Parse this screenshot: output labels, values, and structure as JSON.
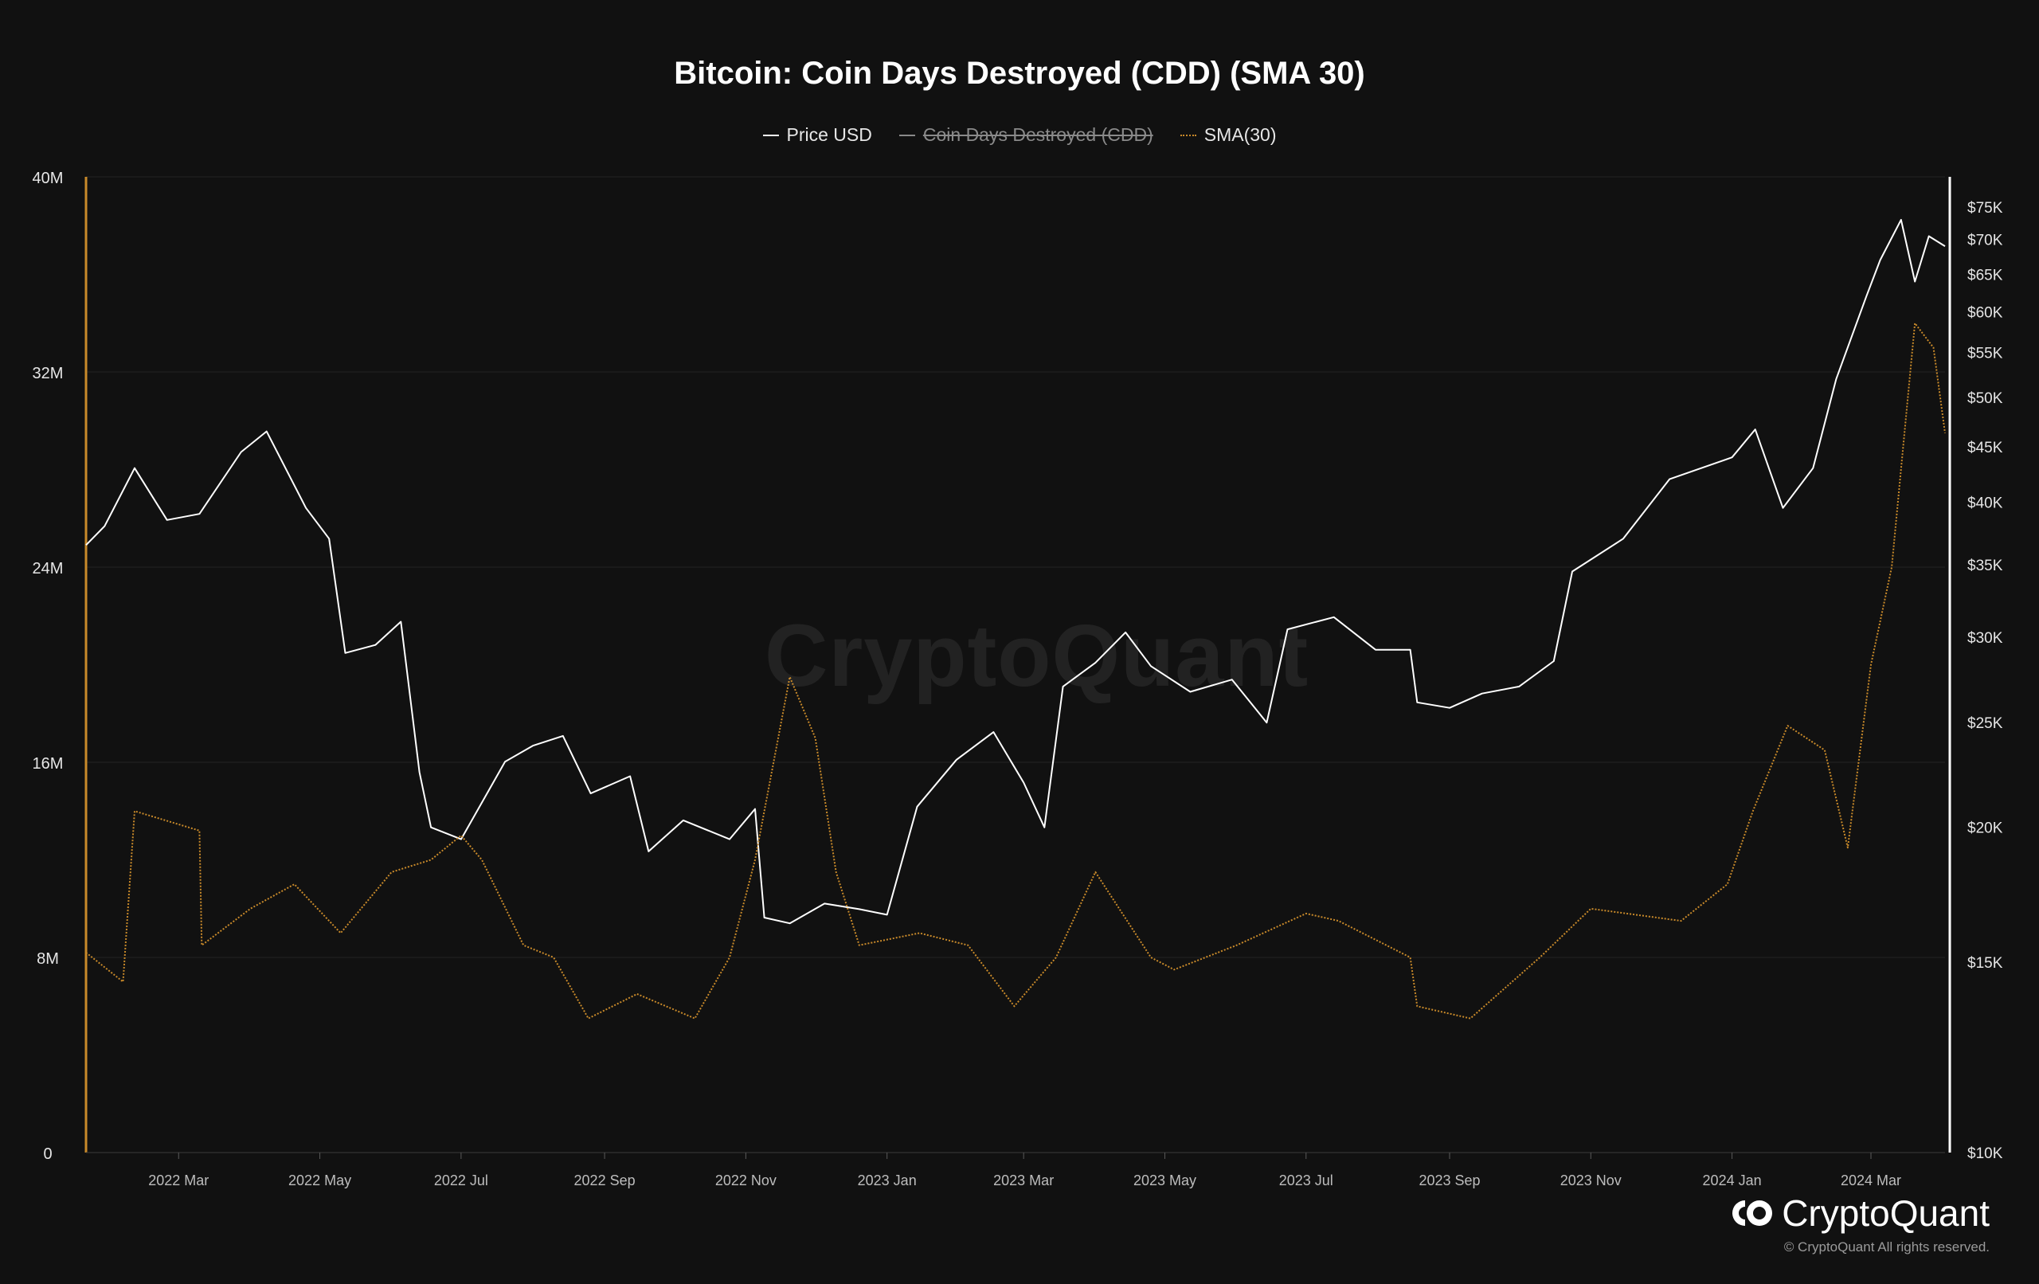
{
  "chart_data": {
    "type": "line",
    "title": "Bitcoin: Coin Days Destroyed (CDD) (SMA 30)",
    "legend": [
      {
        "label": "Price USD",
        "state": "visible"
      },
      {
        "label": "Coin Days Destroyed (CDD)",
        "state": "hidden"
      },
      {
        "label": "SMA(30)",
        "state": "visible"
      }
    ],
    "x_ticks": [
      "2022 Mar",
      "2022 May",
      "2022 Jul",
      "2022 Sep",
      "2022 Nov",
      "2023 Jan",
      "2023 Mar",
      "2023 May",
      "2023 Jul",
      "2023 Sep",
      "2023 Nov",
      "2024 Jan",
      "2024 Mar"
    ],
    "y_left": {
      "range": [
        0,
        40
      ],
      "ticks": [
        "0",
        "8M",
        "16M",
        "24M",
        "32M",
        "40M"
      ]
    },
    "y_right": {
      "scale": "log",
      "range": [
        10000,
        80000
      ],
      "ticks": [
        "$10K",
        "$15K",
        "$20K",
        "$25K",
        "$30K",
        "$35K",
        "$40K",
        "$45K",
        "$50K",
        "$55K",
        "$60K",
        "$65K",
        "$70K",
        "$75K"
      ]
    },
    "series": [
      {
        "name": "Price USD",
        "axis": "right",
        "color": "#ffffff",
        "x": [
          "2022-01-20",
          "2022-01-28",
          "2022-02-10",
          "2022-02-24",
          "2022-03-10",
          "2022-03-28",
          "2022-04-08",
          "2022-04-25",
          "2022-05-05",
          "2022-05-12",
          "2022-05-25",
          "2022-06-05",
          "2022-06-13",
          "2022-06-18",
          "2022-07-01",
          "2022-07-20",
          "2022-08-01",
          "2022-08-14",
          "2022-08-26",
          "2022-09-12",
          "2022-09-20",
          "2022-10-05",
          "2022-10-25",
          "2022-11-05",
          "2022-11-09",
          "2022-11-20",
          "2022-12-05",
          "2022-12-20",
          "2023-01-01",
          "2023-01-14",
          "2023-01-31",
          "2023-02-16",
          "2023-03-01",
          "2023-03-10",
          "2023-03-18",
          "2023-04-01",
          "2023-04-14",
          "2023-04-25",
          "2023-05-12",
          "2023-05-30",
          "2023-06-14",
          "2023-06-23",
          "2023-07-13",
          "2023-07-31",
          "2023-08-15",
          "2023-08-18",
          "2023-09-01",
          "2023-09-15",
          "2023-10-01",
          "2023-10-16",
          "2023-10-24",
          "2023-11-15",
          "2023-12-05",
          "2024-01-01",
          "2024-01-11",
          "2024-01-23",
          "2024-02-05",
          "2024-02-15",
          "2024-02-28",
          "2024-03-05",
          "2024-03-14",
          "2024-03-20",
          "2024-03-26",
          "2024-04-02"
        ],
        "values": [
          36500,
          38000,
          43000,
          38500,
          39000,
          44500,
          46500,
          39500,
          37000,
          29000,
          29500,
          31000,
          22500,
          20000,
          19500,
          23000,
          23800,
          24300,
          21500,
          22300,
          19000,
          20300,
          19500,
          20800,
          16500,
          16300,
          17000,
          16800,
          16600,
          20900,
          23100,
          24500,
          22000,
          20000,
          27000,
          28400,
          30300,
          28200,
          26700,
          27400,
          25000,
          30500,
          31300,
          29200,
          29200,
          26100,
          25800,
          26600,
          27000,
          28500,
          34500,
          37000,
          42000,
          44000,
          46700,
          39500,
          43000,
          52000,
          62000,
          67000,
          73000,
          64000,
          70500,
          69000
        ]
      },
      {
        "name": "SMA(30)",
        "axis": "left",
        "color": "#c98a2a",
        "style": "dotted",
        "x": [
          "2022-01-20",
          "2022-02-05",
          "2022-02-10",
          "2022-03-10",
          "2022-03-11",
          "2022-04-01",
          "2022-04-20",
          "2022-05-10",
          "2022-06-01",
          "2022-06-18",
          "2022-07-01",
          "2022-07-10",
          "2022-07-28",
          "2022-08-10",
          "2022-08-25",
          "2022-09-15",
          "2022-10-10",
          "2022-10-25",
          "2022-11-05",
          "2022-11-20",
          "2022-12-01",
          "2022-12-10",
          "2022-12-20",
          "2023-01-15",
          "2023-02-05",
          "2023-02-25",
          "2023-03-15",
          "2023-04-01",
          "2023-04-25",
          "2023-05-05",
          "2023-06-01",
          "2023-07-01",
          "2023-07-15",
          "2023-08-15",
          "2023-08-18",
          "2023-09-10",
          "2023-10-10",
          "2023-11-01",
          "2023-12-10",
          "2023-12-30",
          "2024-01-10",
          "2024-01-25",
          "2024-02-10",
          "2024-02-20",
          "2024-03-01",
          "2024-03-10",
          "2024-03-20",
          "2024-03-28",
          "2024-04-02"
        ],
        "values": [
          8.2,
          7.0,
          14.0,
          13.2,
          8.5,
          10.0,
          11.0,
          9.0,
          11.5,
          12.0,
          13.0,
          12.0,
          8.5,
          8.0,
          5.5,
          6.5,
          5.5,
          8.0,
          12.0,
          19.5,
          17.0,
          11.5,
          8.5,
          9.0,
          8.5,
          6.0,
          8.0,
          11.5,
          8.0,
          7.5,
          8.5,
          9.8,
          9.5,
          8.0,
          6.0,
          5.5,
          8.0,
          10.0,
          9.5,
          11.0,
          14.0,
          17.5,
          16.5,
          12.5,
          20.0,
          24.0,
          34.0,
          33.0,
          29.5
        ]
      }
    ]
  },
  "watermark": "CryptoQuant",
  "brand": {
    "name": "CryptoQuant",
    "copyright": "© CryptoQuant All rights reserved."
  }
}
